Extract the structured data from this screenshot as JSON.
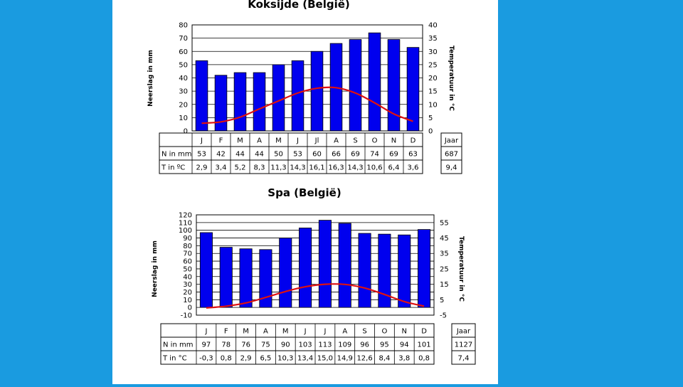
{
  "colors": {
    "background": "#1a9be0",
    "bar": "#0000ee",
    "bar_outline": "#000000",
    "temperature_line": "#dd1111"
  },
  "chart_data": [
    {
      "type": "bar",
      "title": "Koksijde (België)",
      "ylabel": "Neerslag in mm",
      "y2label": "Temperatuur in °C",
      "categories": [
        "J",
        "F",
        "M",
        "A",
        "M",
        "J",
        "Jl",
        "A",
        "S",
        "O",
        "N",
        "D"
      ],
      "ylim": [
        0,
        80
      ],
      "yticks": [
        0,
        10,
        20,
        30,
        40,
        50,
        60,
        70,
        80
      ],
      "y2lim": [
        0,
        40
      ],
      "y2ticks": [
        0,
        5,
        10,
        15,
        20,
        25,
        30,
        35,
        40
      ],
      "grid": true,
      "series": [
        {
          "name": "N in mm",
          "type": "bar",
          "axis": "left",
          "values": [
            53,
            42,
            44,
            44,
            50,
            53,
            60,
            66,
            69,
            74,
            69,
            63
          ],
          "labels": [
            "53",
            "42",
            "44",
            "44",
            "50",
            "53",
            "60",
            "66",
            "69",
            "74",
            "69",
            "63"
          ]
        },
        {
          "name": "T in ºC",
          "type": "line",
          "axis": "right",
          "values": [
            2.9,
            3.4,
            5.2,
            8.3,
            11.3,
            14.3,
            16.1,
            16.3,
            14.3,
            10.6,
            6.4,
            3.6
          ],
          "labels": [
            "2,9",
            "3,4",
            "5,2",
            "8,3",
            "11,3",
            "14,3",
            "16,1",
            "16,3",
            "14,3",
            "10,6",
            "6,4",
            "3,6"
          ]
        }
      ],
      "annual": {
        "header": "Jaar",
        "precipitation": "687",
        "temperature": "9,4"
      }
    },
    {
      "type": "bar",
      "title": "Spa (België)",
      "ylabel": "Neerslag in mm",
      "y2label": "Temperatuur in °C",
      "categories": [
        "J",
        "F",
        "M",
        "A",
        "M",
        "J",
        "J",
        "A",
        "S",
        "O",
        "N",
        "D"
      ],
      "ylim": [
        -10,
        120
      ],
      "yticks": [
        -10,
        0,
        10,
        20,
        30,
        40,
        50,
        60,
        70,
        80,
        90,
        100,
        110,
        120
      ],
      "y2lim": [
        -5,
        60
      ],
      "y2ticks": [
        -5,
        5,
        15,
        25,
        35,
        45,
        55
      ],
      "grid": true,
      "series": [
        {
          "name": "N in mm",
          "type": "bar",
          "axis": "left",
          "values": [
            97,
            78,
            76,
            75,
            90,
            103,
            113,
            109,
            96,
            95,
            94,
            101
          ],
          "labels": [
            "97",
            "78",
            "76",
            "75",
            "90",
            "103",
            "113",
            "109",
            "96",
            "95",
            "94",
            "101"
          ]
        },
        {
          "name": "T in °C",
          "type": "line",
          "axis": "right",
          "values": [
            -0.3,
            0.8,
            2.9,
            6.5,
            10.3,
            13.4,
            15.0,
            14.9,
            12.6,
            8.4,
            3.8,
            0.8
          ],
          "labels": [
            "-0,3",
            "0,8",
            "2,9",
            "6,5",
            "10,3",
            "13,4",
            "15,0",
            "14,9",
            "12,6",
            "8,4",
            "3,8",
            "0,8"
          ]
        }
      ],
      "annual": {
        "header": "Jaar",
        "precipitation": "1127",
        "temperature": "7,4"
      }
    }
  ]
}
